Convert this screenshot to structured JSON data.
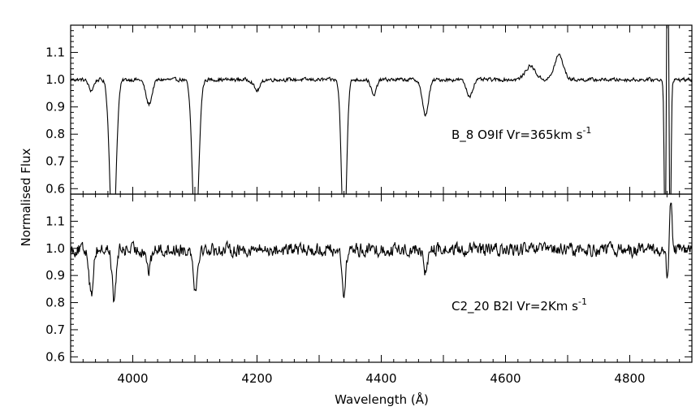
{
  "chart_data": {
    "type": "line",
    "xlabel": "Wavelength (Å)",
    "ylabel": "Normalised Flux",
    "xlim": [
      3900,
      4900
    ],
    "x_ticks": [
      4000,
      4200,
      4400,
      4600,
      4800
    ],
    "x_tick_labels": [
      "4000",
      "4200",
      "4400",
      "4600",
      "4800"
    ],
    "grid": false,
    "panels": [
      {
        "label": "B_8 O9If Vr=365km s",
        "label_sup": "-1",
        "ylim": [
          0.58,
          1.2
        ],
        "y_ticks": [
          0.6,
          0.7,
          0.8,
          0.9,
          1.0,
          1.1
        ],
        "y_tick_labels": [
          "0.6",
          "0.7",
          "0.8",
          "0.9",
          "1.0",
          "1.1"
        ],
        "continuum": 1.0,
        "features": [
          {
            "center": 3933,
            "depth": 0.04,
            "width": 4
          },
          {
            "center": 3968,
            "depth": 0.6,
            "width": 5
          },
          {
            "center": 4026,
            "depth": 0.09,
            "width": 5
          },
          {
            "center": 4101,
            "depth": 0.6,
            "width": 5
          },
          {
            "center": 4200,
            "depth": 0.04,
            "width": 5
          },
          {
            "center": 4340,
            "depth": 0.6,
            "width": 4
          },
          {
            "center": 4388,
            "depth": 0.06,
            "width": 4
          },
          {
            "center": 4471,
            "depth": 0.13,
            "width": 5
          },
          {
            "center": 4542,
            "depth": 0.06,
            "width": 5
          },
          {
            "center": 4640,
            "depth": -0.05,
            "width": 8
          },
          {
            "center": 4686,
            "depth": -0.09,
            "width": 7
          },
          {
            "center": 4857,
            "depth": 0.6,
            "width": 1.5
          },
          {
            "center": 4861,
            "depth": -0.6,
            "width": 1.5
          },
          {
            "center": 4865,
            "depth": 0.6,
            "width": 1.5
          }
        ],
        "noise": 0.006
      },
      {
        "label": "C2_20 B2I Vr=2Km s",
        "label_sup": "-1",
        "ylim": [
          0.58,
          1.2
        ],
        "y_ticks": [
          0.6,
          0.7,
          0.8,
          0.9,
          1.0,
          1.1
        ],
        "y_tick_labels": [
          "0.6",
          "0.7",
          "0.8",
          "0.9",
          "1.0",
          "1.1"
        ],
        "continuum": 0.995,
        "features": [
          {
            "center": 3933,
            "depth": 0.17,
            "width": 3
          },
          {
            "center": 3970,
            "depth": 0.19,
            "width": 3
          },
          {
            "center": 4026,
            "depth": 0.08,
            "width": 3
          },
          {
            "center": 4101,
            "depth": 0.15,
            "width": 3
          },
          {
            "center": 4340,
            "depth": 0.16,
            "width": 3
          },
          {
            "center": 4471,
            "depth": 0.09,
            "width": 3
          },
          {
            "center": 4861,
            "depth": 0.12,
            "width": 2
          },
          {
            "center": 4866,
            "depth": -0.18,
            "width": 2
          }
        ],
        "noise": 0.022
      }
    ]
  }
}
